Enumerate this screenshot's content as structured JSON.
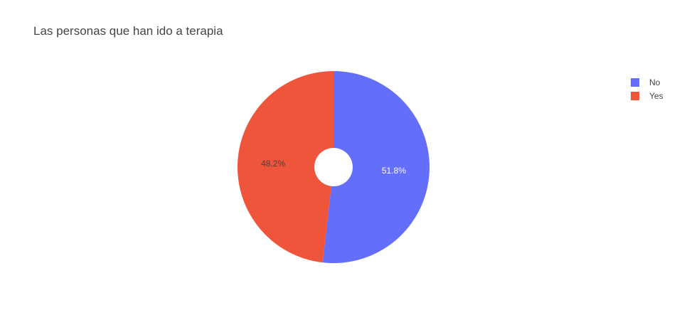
{
  "chart_data": {
    "type": "pie",
    "title": "Las personas que han ido a terapia",
    "hole": 0.2,
    "legend_position": "top-right",
    "slices": [
      {
        "label": "No",
        "value": 51.8,
        "text": "51.8%",
        "color": "#636efa",
        "text_color": "#ffffff"
      },
      {
        "label": "Yes",
        "value": 48.2,
        "text": "48.2%",
        "color": "#ef553b",
        "text_color": "#444444"
      }
    ]
  }
}
